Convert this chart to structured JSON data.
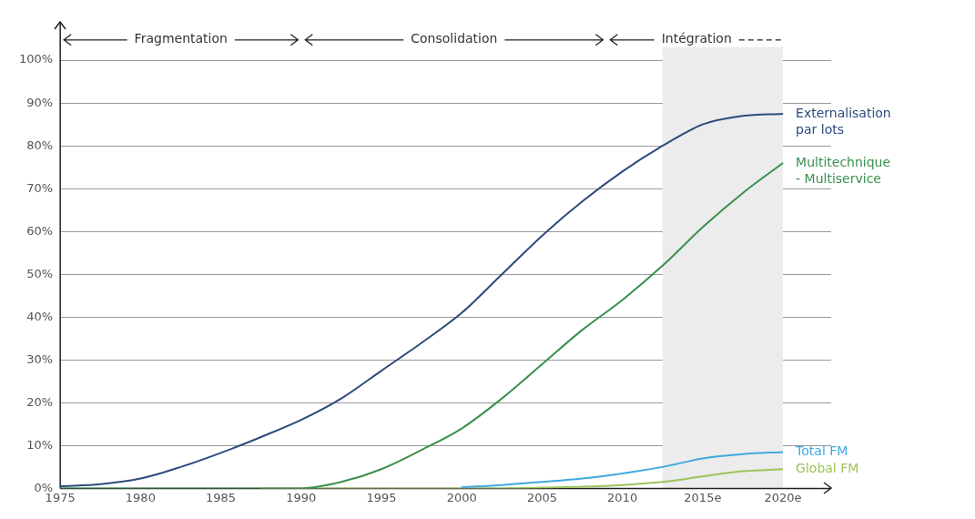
{
  "chart_data": {
    "type": "line",
    "x": [
      1975,
      1977.5,
      1980,
      1982.5,
      1985,
      1987.5,
      1990,
      1992.5,
      1995,
      1997.5,
      2000,
      2002.5,
      2005,
      2007.5,
      2010,
      2012.5,
      2015,
      2017.5,
      2020
    ],
    "series": [
      {
        "name": "Externalisation par lots",
        "color": "#2e4a7d",
        "values": [
          0.5,
          1,
          2.3,
          5,
          8.3,
          12,
          16,
          21,
          27.5,
          34,
          41,
          50,
          59,
          67,
          74,
          80,
          85,
          87,
          87.5
        ]
      },
      {
        "name": "Multitechnique - Multiservice",
        "color": "#3a8f4e",
        "values": [
          0,
          0,
          0,
          0,
          0,
          0,
          0,
          1.5,
          4.5,
          9,
          14,
          21,
          29,
          37,
          44,
          52,
          61,
          69,
          76
        ]
      },
      {
        "name": "Total FM",
        "color": "#3fa9e0",
        "values": [
          null,
          null,
          null,
          null,
          null,
          null,
          null,
          null,
          null,
          null,
          0.3,
          0.8,
          1.5,
          2.3,
          3.5,
          5,
          7,
          8,
          8.5
        ]
      },
      {
        "name": "Global FM",
        "color": "#9cc45a",
        "values": [
          null,
          null,
          null,
          null,
          null,
          0,
          0,
          0,
          0,
          0,
          0,
          0,
          0.2,
          0.4,
          0.8,
          1.5,
          2.8,
          4,
          4.5
        ]
      }
    ],
    "xlim": [
      1975,
      2023
    ],
    "xticks": [
      1975,
      1980,
      1985,
      1990,
      1995,
      2000,
      2005,
      2010,
      {
        "value": 2015,
        "label": "2015e"
      },
      {
        "value": 2020,
        "label": "2020e"
      }
    ],
    "ylim": [
      0,
      109
    ],
    "yticks": [
      {
        "value": 0,
        "label": "0%"
      },
      {
        "value": 10,
        "label": "10%"
      },
      {
        "value": 20,
        "label": "20%"
      },
      {
        "value": 30,
        "label": "30%"
      },
      {
        "value": 40,
        "label": "40%"
      },
      {
        "value": 50,
        "label": "50%"
      },
      {
        "value": 60,
        "label": "60%"
      },
      {
        "value": 70,
        "label": "70%"
      },
      {
        "value": 80,
        "label": "80%"
      },
      {
        "value": 90,
        "label": "90%"
      },
      {
        "value": 100,
        "label": "100%"
      }
    ],
    "grid": "y",
    "legend": false,
    "marker": "none",
    "line_style": "solid",
    "bands": [
      {
        "axis": "x",
        "from": 2012.5,
        "to": 2020,
        "color": "#ececec"
      }
    ],
    "annotations": [
      "Fragmentation",
      "Consolidation",
      "Intégration"
    ]
  }
}
